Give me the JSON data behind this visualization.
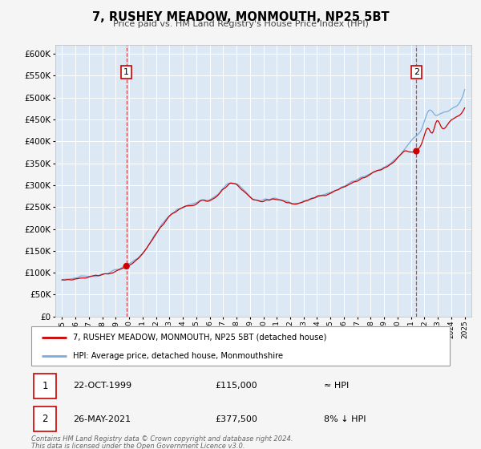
{
  "title_line1": "7, RUSHEY MEADOW, MONMOUTH, NP25 5BT",
  "title_line2": "Price paid vs. HM Land Registry's House Price Index (HPI)",
  "hpi_label": "HPI: Average price, detached house, Monmouthshire",
  "property_label": "7, RUSHEY MEADOW, MONMOUTH, NP25 5BT (detached house)",
  "property_color": "#cc0000",
  "hpi_color": "#7aaddd",
  "fig_bg_color": "#f5f5f5",
  "plot_bg_color": "#dce9f5",
  "grid_color": "#ffffff",
  "sale1_date": "22-OCT-1999",
  "sale1_price": 115000,
  "sale1_year": 1999.8,
  "sale2_date": "26-MAY-2021",
  "sale2_price": 377500,
  "sale2_year": 2021.4,
  "ylim": [
    0,
    620000
  ],
  "xlim_start": 1994.5,
  "xlim_end": 2025.5,
  "footer_line1": "Contains HM Land Registry data © Crown copyright and database right 2024.",
  "footer_line2": "This data is licensed under the Open Government Licence v3.0.",
  "sale1_vs_hpi": "≈ HPI",
  "sale2_vs_hpi": "8% ↓ HPI"
}
